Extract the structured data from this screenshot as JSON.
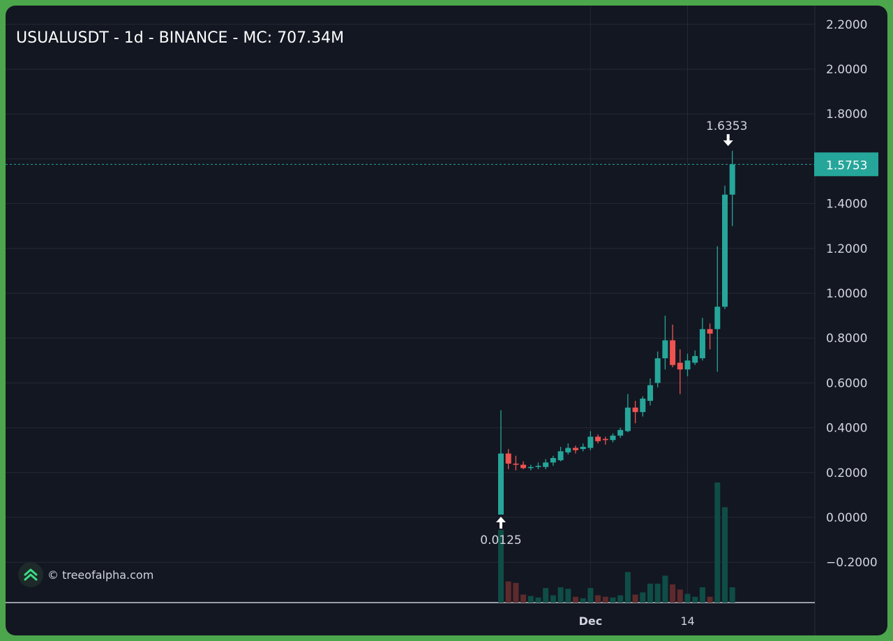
{
  "title": "USUALUSDT - 1d - BINANCE - MC: 707.34M",
  "watermark": {
    "icon": "treeofalpha-logo-icon",
    "text": "© treeofalpha.com"
  },
  "colors": {
    "background": "#131722",
    "frame": "#4ca64c",
    "up": "#26a69a",
    "down": "#ef5350",
    "volume_up": "#0f4d47",
    "volume_down": "#5e2a2c",
    "grid": "#242833",
    "text": "#d1d4dc"
  },
  "chart_data": {
    "type": "candlestick",
    "symbol": "USUALUSDT",
    "interval": "1d",
    "exchange": "BINANCE",
    "market_cap_label": "MC: 707.34M",
    "ylim": [
      -0.35,
      2.3
    ],
    "y_ticks": [
      2.2,
      2.0,
      1.8,
      1.6,
      1.4,
      1.2,
      1.0,
      0.8,
      0.6,
      0.4,
      0.2,
      0.0,
      -0.2
    ],
    "y_tick_labels": [
      "2.2000",
      "2.0000",
      "1.8000",
      "1.6000",
      "1.4000",
      "1.2000",
      "1.0000",
      "0.8000",
      "0.6000",
      "0.4000",
      "0.2000",
      "0.0000",
      "−0.2000"
    ],
    "x_ticks": [
      {
        "label": "Dec",
        "index": 12,
        "bold": true
      },
      {
        "label": "14",
        "index": 25,
        "bold": false
      }
    ],
    "grid": true,
    "last_price": 1.5753,
    "last_price_label": "1.5753",
    "annotations": [
      {
        "type": "high",
        "label": "1.6353",
        "index": 31,
        "value": 1.6353
      },
      {
        "type": "low",
        "label": "0.0125",
        "index": 0,
        "value": 0.0125
      }
    ],
    "candles": [
      {
        "o": 0.0125,
        "h": 0.478,
        "l": 0.0125,
        "c": 0.285,
        "v": 100
      },
      {
        "o": 0.285,
        "h": 0.305,
        "l": 0.215,
        "c": 0.24,
        "v": 29
      },
      {
        "o": 0.24,
        "h": 0.275,
        "l": 0.21,
        "c": 0.235,
        "v": 27
      },
      {
        "o": 0.235,
        "h": 0.25,
        "l": 0.215,
        "c": 0.22,
        "v": 11
      },
      {
        "o": 0.22,
        "h": 0.235,
        "l": 0.21,
        "c": 0.225,
        "v": 9
      },
      {
        "o": 0.225,
        "h": 0.245,
        "l": 0.215,
        "c": 0.23,
        "v": 7
      },
      {
        "o": 0.225,
        "h": 0.26,
        "l": 0.215,
        "c": 0.245,
        "v": 20
      },
      {
        "o": 0.245,
        "h": 0.275,
        "l": 0.23,
        "c": 0.265,
        "v": 10
      },
      {
        "o": 0.255,
        "h": 0.315,
        "l": 0.25,
        "c": 0.295,
        "v": 21
      },
      {
        "o": 0.29,
        "h": 0.33,
        "l": 0.28,
        "c": 0.31,
        "v": 19
      },
      {
        "o": 0.31,
        "h": 0.32,
        "l": 0.285,
        "c": 0.3,
        "v": 8
      },
      {
        "o": 0.305,
        "h": 0.33,
        "l": 0.295,
        "c": 0.315,
        "v": 6
      },
      {
        "o": 0.31,
        "h": 0.385,
        "l": 0.3,
        "c": 0.36,
        "v": 20
      },
      {
        "o": 0.36,
        "h": 0.37,
        "l": 0.33,
        "c": 0.34,
        "v": 10
      },
      {
        "o": 0.35,
        "h": 0.36,
        "l": 0.325,
        "c": 0.345,
        "v": 8
      },
      {
        "o": 0.345,
        "h": 0.375,
        "l": 0.335,
        "c": 0.365,
        "v": 7
      },
      {
        "o": 0.365,
        "h": 0.4,
        "l": 0.355,
        "c": 0.39,
        "v": 10
      },
      {
        "o": 0.385,
        "h": 0.55,
        "l": 0.38,
        "c": 0.49,
        "v": 42
      },
      {
        "o": 0.49,
        "h": 0.52,
        "l": 0.42,
        "c": 0.47,
        "v": 11
      },
      {
        "o": 0.47,
        "h": 0.54,
        "l": 0.45,
        "c": 0.53,
        "v": 14
      },
      {
        "o": 0.52,
        "h": 0.62,
        "l": 0.5,
        "c": 0.59,
        "v": 26
      },
      {
        "o": 0.6,
        "h": 0.74,
        "l": 0.58,
        "c": 0.71,
        "v": 26
      },
      {
        "o": 0.71,
        "h": 0.9,
        "l": 0.66,
        "c": 0.79,
        "v": 37
      },
      {
        "o": 0.79,
        "h": 0.86,
        "l": 0.67,
        "c": 0.68,
        "v": 25
      },
      {
        "o": 0.69,
        "h": 0.75,
        "l": 0.55,
        "c": 0.66,
        "v": 18
      },
      {
        "o": 0.66,
        "h": 0.73,
        "l": 0.63,
        "c": 0.7,
        "v": 12
      },
      {
        "o": 0.69,
        "h": 0.745,
        "l": 0.68,
        "c": 0.72,
        "v": 8
      },
      {
        "o": 0.71,
        "h": 0.89,
        "l": 0.7,
        "c": 0.84,
        "v": 21
      },
      {
        "o": 0.84,
        "h": 0.865,
        "l": 0.75,
        "c": 0.82,
        "v": 8
      },
      {
        "o": 0.84,
        "h": 1.21,
        "l": 0.65,
        "c": 0.94,
        "v": 165
      },
      {
        "o": 0.94,
        "h": 1.48,
        "l": 0.93,
        "c": 1.44,
        "v": 131
      },
      {
        "o": 1.44,
        "h": 1.6353,
        "l": 1.3,
        "c": 1.5753,
        "v": 21
      }
    ]
  }
}
